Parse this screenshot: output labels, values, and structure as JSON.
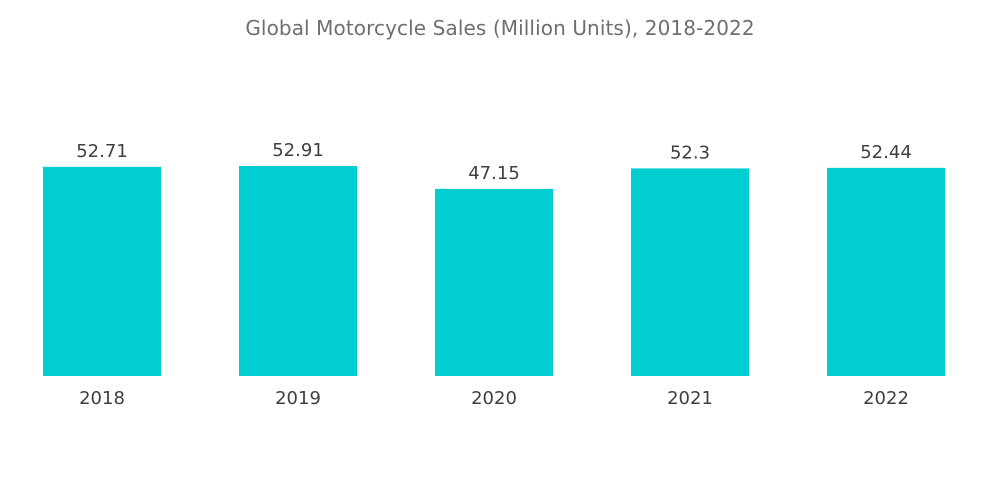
{
  "chart_data": {
    "type": "bar",
    "title": "Global Motorcycle Sales (Million Units), 2018-2022",
    "categories": [
      "2018",
      "2019",
      "2020",
      "2021",
      "2022"
    ],
    "values": [
      52.71,
      52.91,
      47.15,
      52.3,
      52.44
    ],
    "value_labels": [
      "52.71",
      "52.91",
      "47.15",
      "52.3",
      "52.44"
    ],
    "xlabel": "",
    "ylabel": "",
    "ylim": [
      0,
      52.91
    ],
    "grid": false,
    "legend": "none",
    "bar_color": "#00ced1"
  }
}
